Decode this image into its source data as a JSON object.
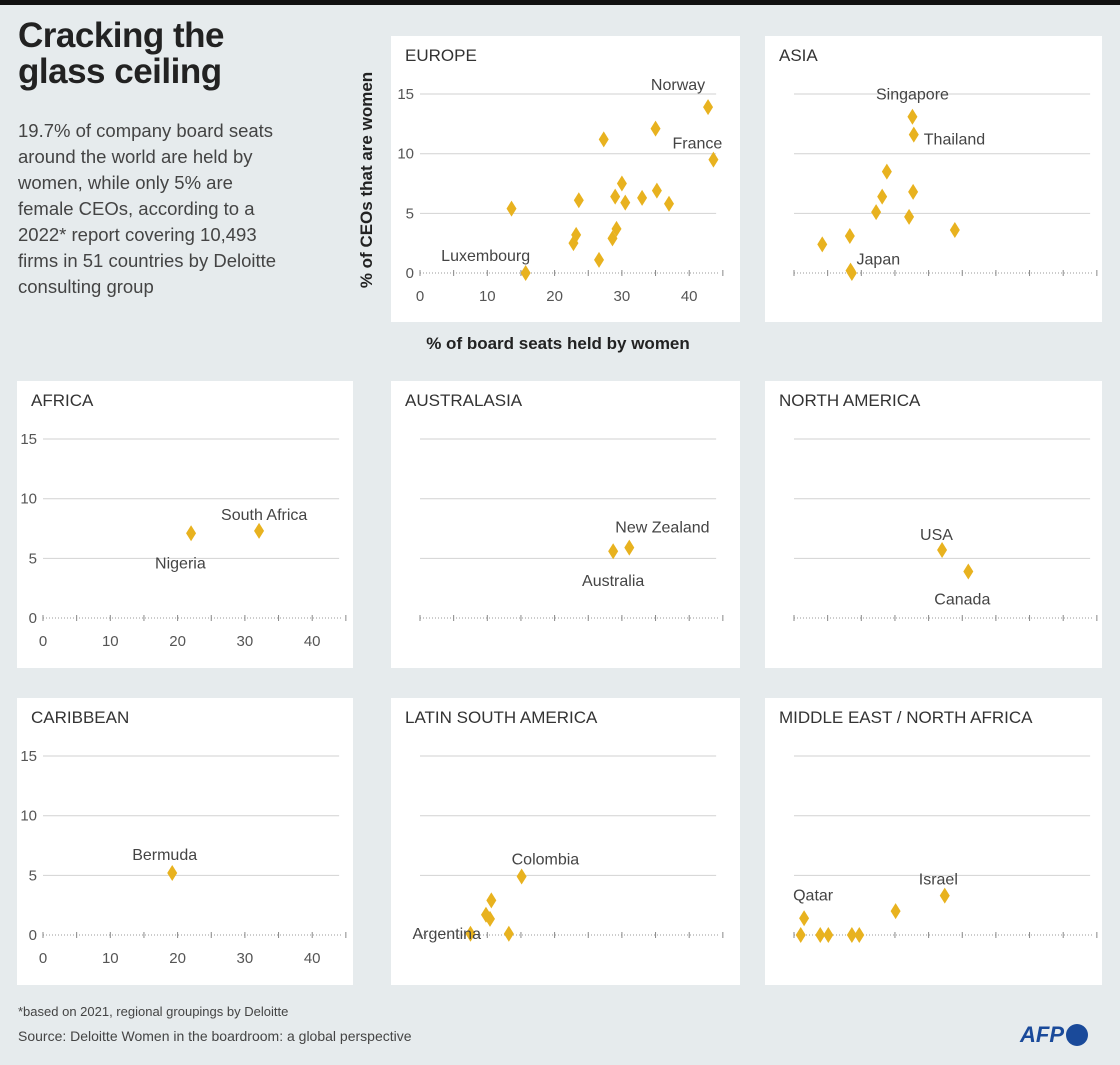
{
  "title": "Cracking the glass ceiling",
  "subtitle": "19.7% of company board seats around the world are held by women, while only 5% are female CEOs, according to a 2022* report covering 10,493 firms in 51 countries by Deloitte consulting group",
  "footnote": "*based on 2021, regional groupings by Deloitte",
  "source": "Source: Deloitte Women in the boardroom: a global perspective",
  "logo": "AFP",
  "colors": {
    "marker": "#e8b21f",
    "background": "#e6ebed",
    "panel": "#ffffff",
    "grid": "#cfcfcf"
  },
  "chart_data": {
    "type": "scatter",
    "xlabel": "% of board seats held by women",
    "ylabel": "% of CEOs that are women",
    "xlim": [
      0,
      44
    ],
    "ylim": [
      0,
      15
    ],
    "xticks": [
      "0",
      "10",
      "20",
      "30",
      "40"
    ],
    "yticks": [
      "0",
      "5",
      "10",
      "15"
    ],
    "grid": true,
    "panels": [
      {
        "name": "EUROPE",
        "show_ticks": true,
        "points": [
          {
            "x": 42.8,
            "y": 13.9,
            "label": "Norway"
          },
          {
            "x": 35.0,
            "y": 12.1
          },
          {
            "x": 27.3,
            "y": 11.2
          },
          {
            "x": 43.6,
            "y": 9.5,
            "label": "France"
          },
          {
            "x": 13.6,
            "y": 5.4
          },
          {
            "x": 23.6,
            "y": 6.1
          },
          {
            "x": 30.0,
            "y": 7.5
          },
          {
            "x": 29.0,
            "y": 6.4
          },
          {
            "x": 30.5,
            "y": 5.9
          },
          {
            "x": 33.0,
            "y": 6.3
          },
          {
            "x": 35.2,
            "y": 6.9
          },
          {
            "x": 37.0,
            "y": 5.8
          },
          {
            "x": 22.8,
            "y": 2.5
          },
          {
            "x": 23.2,
            "y": 3.2
          },
          {
            "x": 28.6,
            "y": 2.9
          },
          {
            "x": 29.2,
            "y": 3.7
          },
          {
            "x": 26.6,
            "y": 1.1
          },
          {
            "x": 15.7,
            "y": 0,
            "label": "Luxembourg"
          }
        ]
      },
      {
        "name": "ASIA",
        "show_ticks": false,
        "points": [
          {
            "x": 17.6,
            "y": 13.1,
            "label": "Singapore"
          },
          {
            "x": 17.8,
            "y": 11.6,
            "label": "Thailand"
          },
          {
            "x": 13.8,
            "y": 8.5
          },
          {
            "x": 13.1,
            "y": 6.4
          },
          {
            "x": 17.7,
            "y": 6.8
          },
          {
            "x": 12.2,
            "y": 5.1
          },
          {
            "x": 17.1,
            "y": 4.7
          },
          {
            "x": 23.9,
            "y": 3.6
          },
          {
            "x": 8.3,
            "y": 3.1
          },
          {
            "x": 4.2,
            "y": 2.4
          },
          {
            "x": 8.4,
            "y": 0.2,
            "label": "Japan"
          },
          {
            "x": 8.6,
            "y": 0
          }
        ]
      },
      {
        "name": "AFRICA",
        "show_ticks": true,
        "points": [
          {
            "x": 22.0,
            "y": 7.1,
            "label": "Nigeria"
          },
          {
            "x": 32.1,
            "y": 7.3,
            "label": "South Africa"
          }
        ]
      },
      {
        "name": "AUSTRALASIA",
        "show_ticks": false,
        "points": [
          {
            "x": 28.7,
            "y": 5.6,
            "label": "Australia"
          },
          {
            "x": 31.1,
            "y": 5.9,
            "label": "New Zealand"
          }
        ]
      },
      {
        "name": "NORTH AMERICA",
        "show_ticks": false,
        "points": [
          {
            "x": 22.0,
            "y": 5.7,
            "label": "USA"
          },
          {
            "x": 25.9,
            "y": 3.9,
            "label": "Canada"
          }
        ]
      },
      {
        "name": "CARIBBEAN",
        "show_ticks": true,
        "points": [
          {
            "x": 19.2,
            "y": 5.2,
            "label": "Bermuda"
          }
        ]
      },
      {
        "name": "LATIN SOUTH AMERICA",
        "show_ticks": false,
        "points": [
          {
            "x": 15.1,
            "y": 4.9,
            "label": "Colombia"
          },
          {
            "x": 10.6,
            "y": 2.9
          },
          {
            "x": 9.8,
            "y": 1.7
          },
          {
            "x": 10.4,
            "y": 1.35
          },
          {
            "x": 7.5,
            "y": 0.1,
            "label": "Argentina"
          },
          {
            "x": 13.2,
            "y": 0.1
          }
        ]
      },
      {
        "name": "MIDDLE EAST / NORTH AFRICA",
        "show_ticks": false,
        "points": [
          {
            "x": 22.4,
            "y": 3.3,
            "label": "Israel"
          },
          {
            "x": 15.1,
            "y": 2.0
          },
          {
            "x": 1.5,
            "y": 1.4,
            "label": "Qatar"
          },
          {
            "x": 1.0,
            "y": 0
          },
          {
            "x": 3.9,
            "y": 0
          },
          {
            "x": 5.1,
            "y": 0
          },
          {
            "x": 8.6,
            "y": 0
          },
          {
            "x": 9.7,
            "y": 0
          }
        ]
      }
    ]
  }
}
